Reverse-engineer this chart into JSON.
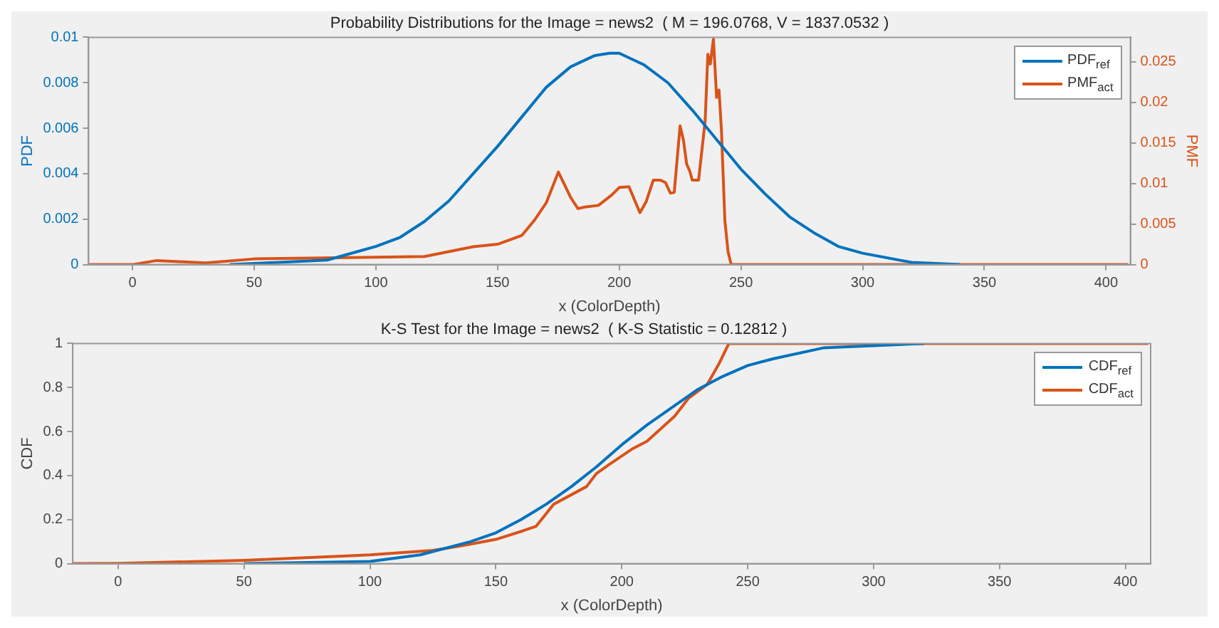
{
  "chart_data": [
    {
      "type": "line",
      "title": "Probability Distributions for the Image = news2  ( M = 196.0768, V = 1837.0532 )",
      "xlabel": "x (ColorDepth)",
      "ylabel": "PDF",
      "y2label": "PMF",
      "xlim": [
        -18,
        410
      ],
      "xticks": [
        0,
        50,
        100,
        150,
        200,
        250,
        300,
        350,
        400
      ],
      "ylim": [
        0,
        0.01
      ],
      "yticks": [
        0,
        0.002,
        0.004,
        0.006,
        0.008,
        0.01
      ],
      "y2lim": [
        0,
        0.028
      ],
      "y2ticks": [
        0,
        0.005,
        0.01,
        0.015,
        0.02,
        0.025
      ],
      "grid": false,
      "legend": "top right",
      "marker": "none",
      "line_style": "solid",
      "series": [
        {
          "name": "PDF$_{ref}$",
          "color": "#0072bd",
          "x": [
            40,
            60,
            80,
            100,
            110,
            120,
            130,
            140,
            150,
            160,
            170,
            180,
            190,
            196,
            200,
            210,
            220,
            230,
            240,
            250,
            260,
            270,
            280,
            290,
            300,
            320,
            340
          ],
          "values": [
            0,
            0.0001,
            0.0002,
            0.0008,
            0.0012,
            0.0019,
            0.0028,
            0.004,
            0.0052,
            0.0065,
            0.0078,
            0.0087,
            0.0092,
            0.0093,
            0.0093,
            0.0088,
            0.008,
            0.0068,
            0.0055,
            0.0042,
            0.0031,
            0.0021,
            0.0014,
            0.0008,
            0.0005,
            0.0001,
            0
          ]
        },
        {
          "name": "PMF$_{act}$",
          "color": "#d95319",
          "axis": "y2",
          "x": [
            -18,
            0,
            10,
            30,
            50,
            100,
            120,
            140,
            150,
            160,
            165,
            170,
            175,
            180,
            183,
            186,
            191.5,
            197,
            200,
            204,
            207.5,
            208.5,
            211,
            214,
            217,
            219,
            221,
            222.6,
            225,
            226.4,
            227.7,
            229,
            230,
            232.6,
            234,
            235.3,
            236.4,
            237.4,
            238.7,
            240,
            241,
            242,
            243.4,
            244.7,
            246,
            300,
            409
          ],
          "values": [
            0,
            0,
            0.0005,
            0.0002,
            0.0007,
            0.0009,
            0.001,
            0.0022,
            0.0025,
            0.0036,
            0.0054,
            0.0076,
            0.0114,
            0.0083,
            0.0069,
            0.0071,
            0.0073,
            0.0086,
            0.0095,
            0.0096,
            0.0071,
            0.0064,
            0.0077,
            0.0104,
            0.0104,
            0.0101,
            0.0088,
            0.0089,
            0.0171,
            0.0153,
            0.0124,
            0.0115,
            0.0104,
            0.0104,
            0.0142,
            0.0177,
            0.0259,
            0.0247,
            0.0278,
            0.0206,
            0.0215,
            0.0165,
            0.0054,
            0.0016,
            0,
            0,
            0
          ]
        }
      ]
    },
    {
      "type": "line",
      "title": "K-S Test for the Image = news2  ( K-S Statistic = 0.12812 )",
      "xlabel": "x (ColorDepth)",
      "ylabel": "CDF",
      "xlim": [
        -18,
        410
      ],
      "xticks": [
        0,
        50,
        100,
        150,
        200,
        250,
        300,
        350,
        400
      ],
      "ylim": [
        0,
        1
      ],
      "yticks": [
        0,
        0.2,
        0.4,
        0.6,
        0.8,
        1
      ],
      "grid": false,
      "legend": "top right",
      "marker": "none",
      "line_style": "solid",
      "series": [
        {
          "name": "CDF$_{ref}$",
          "color": "#0072bd",
          "x": [
            50,
            100,
            120,
            140,
            150,
            160,
            170,
            180,
            190,
            200,
            210,
            220,
            230,
            240,
            250,
            260,
            280,
            300,
            320
          ],
          "values": [
            0,
            0.01,
            0.04,
            0.1,
            0.14,
            0.2,
            0.27,
            0.35,
            0.44,
            0.54,
            0.63,
            0.71,
            0.79,
            0.85,
            0.9,
            0.93,
            0.98,
            0.99,
            1
          ]
        },
        {
          "name": "CDF$_{act}$",
          "color": "#d95319",
          "x": [
            -18,
            0,
            50,
            100,
            125,
            136,
            150,
            161,
            166,
            173,
            186,
            190,
            195,
            204,
            210,
            221,
            226.4,
            234,
            238.7,
            242.5,
            409
          ],
          "values": [
            0,
            0.001,
            0.015,
            0.04,
            0.06,
            0.08,
            0.11,
            0.15,
            0.17,
            0.27,
            0.35,
            0.41,
            0.45,
            0.52,
            0.556,
            0.67,
            0.75,
            0.815,
            0.91,
            1,
            1
          ]
        }
      ]
    }
  ]
}
